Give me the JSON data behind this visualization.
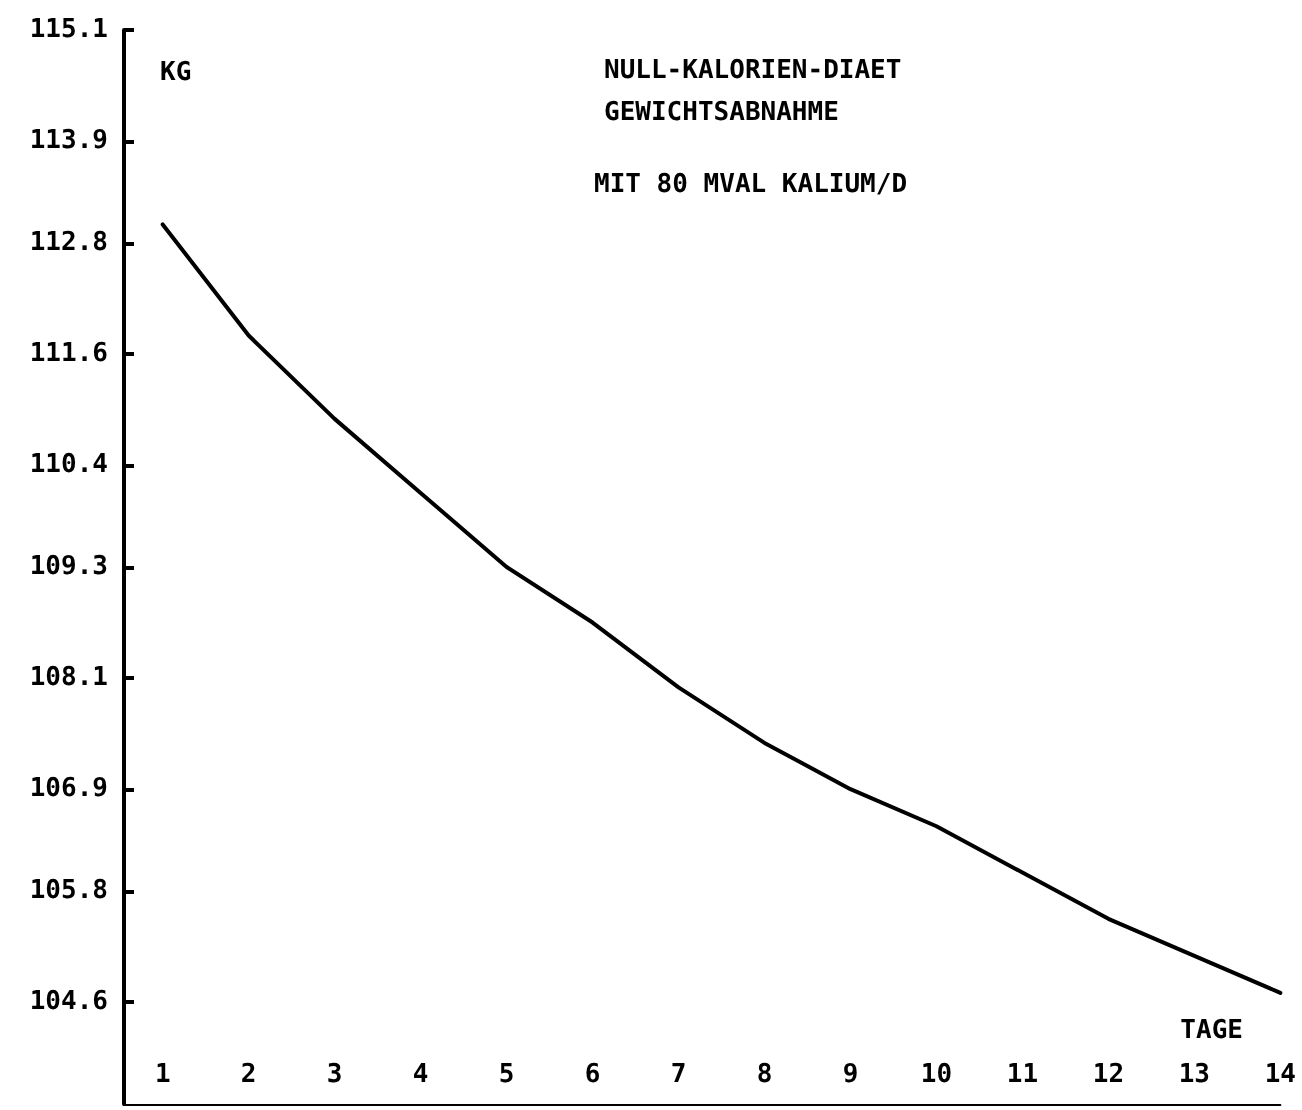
{
  "chart_data": {
    "type": "line",
    "title": "NULL-KALORIEN-DIAET",
    "subtitle": "GEWICHTSABNAHME",
    "annotations": [
      "MIT 80 MVAL KALIUM/D"
    ],
    "xlabel": "TAGE",
    "ylabel": "KG",
    "x": [
      1,
      2,
      3,
      4,
      5,
      6,
      7,
      8,
      9,
      10,
      11,
      12,
      13,
      14
    ],
    "series": [
      {
        "color": "#000000",
        "values": [
          113.0,
          111.8,
          110.9,
          110.1,
          109.3,
          108.7,
          108.0,
          107.4,
          106.9,
          106.5,
          106.0,
          105.5,
          105.1,
          104.7
        ]
      }
    ],
    "xlim": [
      0.55,
      14
    ],
    "xticks": [
      1,
      2,
      3,
      4,
      5,
      6,
      7,
      8,
      9,
      10,
      11,
      12,
      13,
      14
    ],
    "ylim": [
      103.5,
      115.1
    ],
    "yticks": [
      104.6,
      105.8,
      106.9,
      108.1,
      109.3,
      110.4,
      111.6,
      112.8,
      113.9,
      115.1
    ],
    "grid": false,
    "marker": "none",
    "line_style": "solid"
  }
}
